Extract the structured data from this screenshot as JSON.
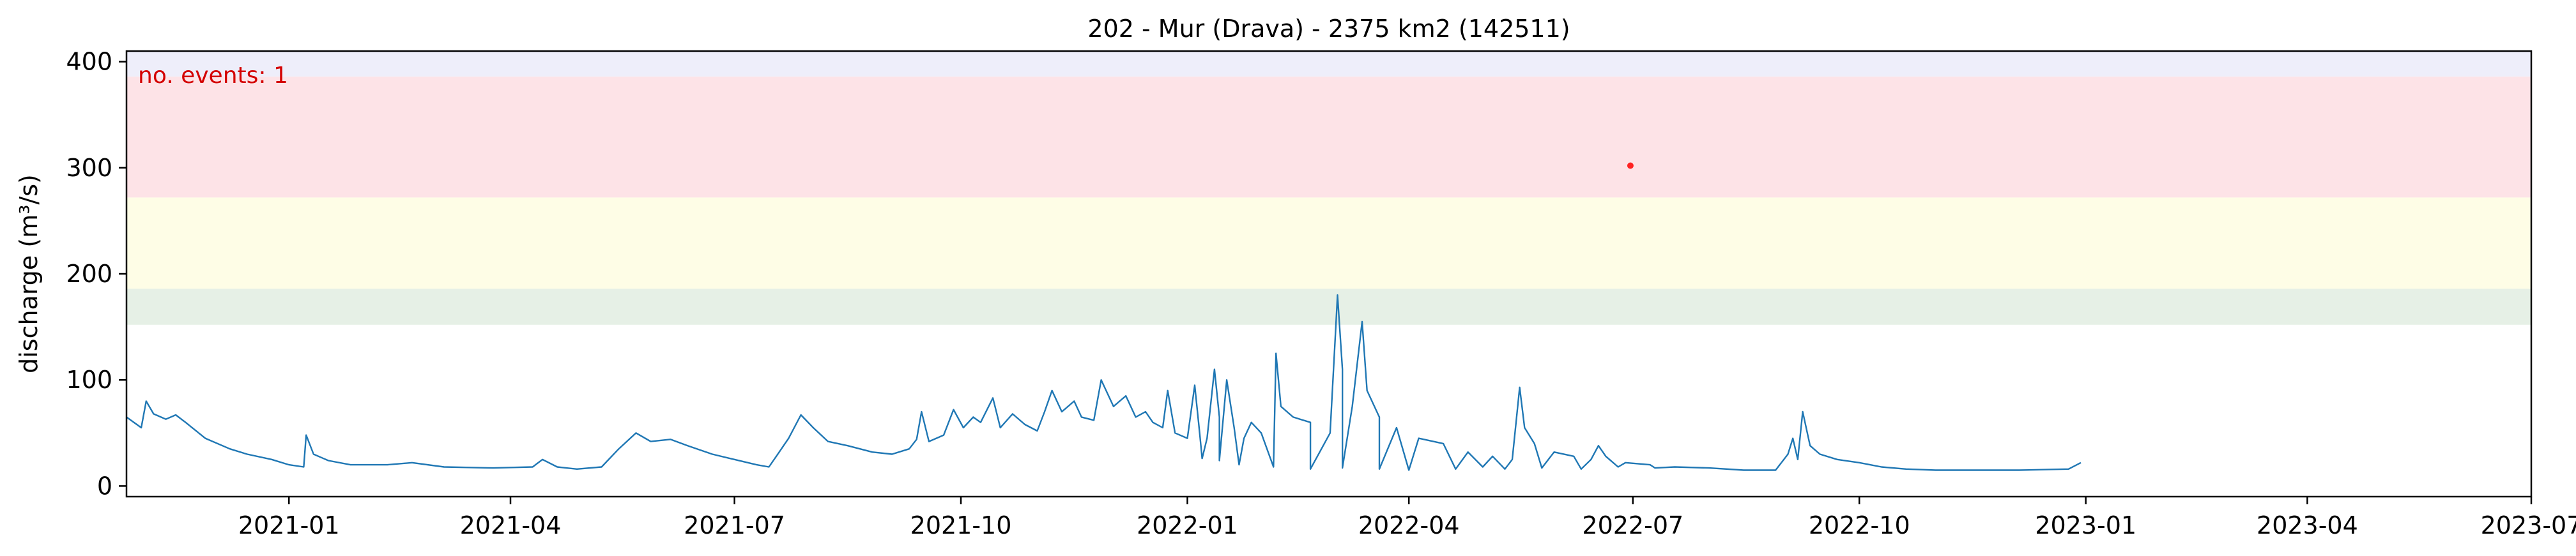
{
  "chart_data": {
    "type": "line",
    "title": "202 - Mur (Drava) - 2375 km2 (142511)",
    "xlabel": "",
    "ylabel": "discharge (m³/s)",
    "xlim": [
      "2020-10-27",
      "2023-07-01"
    ],
    "ylim": [
      -10,
      410
    ],
    "x_ticks": [
      "2021-01",
      "2021-04",
      "2021-07",
      "2021-10",
      "2022-01",
      "2022-04",
      "2022-07",
      "2022-10",
      "2023-01",
      "2023-04",
      "2023-07"
    ],
    "y_ticks": [
      0,
      100,
      200,
      300,
      400
    ],
    "grid": false,
    "bands": [
      {
        "from": 152,
        "to": 186,
        "color": "#e6f0e6"
      },
      {
        "from": 186,
        "to": 272,
        "color": "#fefde6"
      },
      {
        "from": 272,
        "to": 386,
        "color": "#fde3e7"
      },
      {
        "from": 386,
        "to": 410,
        "color": "#eeeefa"
      }
    ],
    "annotation": "no. events: 1",
    "series": [
      {
        "color": "#1f77b4",
        "points": [
          [
            "2020-10-27",
            65
          ],
          [
            "2020-11-02",
            55
          ],
          [
            "2020-11-04",
            80
          ],
          [
            "2020-11-07",
            68
          ],
          [
            "2020-11-12",
            63
          ],
          [
            "2020-11-16",
            67
          ],
          [
            "2020-11-20",
            60
          ],
          [
            "2020-11-28",
            45
          ],
          [
            "2020-12-08",
            35
          ],
          [
            "2020-12-15",
            30
          ],
          [
            "2020-12-25",
            25
          ],
          [
            "2021-01-01",
            20
          ],
          [
            "2021-01-07",
            18
          ],
          [
            "2021-01-08",
            48
          ],
          [
            "2021-01-11",
            30
          ],
          [
            "2021-01-17",
            24
          ],
          [
            "2021-01-26",
            20
          ],
          [
            "2021-02-10",
            20
          ],
          [
            "2021-02-20",
            22
          ],
          [
            "2021-03-05",
            18
          ],
          [
            "2021-03-25",
            17
          ],
          [
            "2021-04-10",
            18
          ],
          [
            "2021-04-14",
            25
          ],
          [
            "2021-04-20",
            18
          ],
          [
            "2021-04-28",
            16
          ],
          [
            "2021-05-08",
            18
          ],
          [
            "2021-05-15",
            35
          ],
          [
            "2021-05-22",
            50
          ],
          [
            "2021-05-28",
            42
          ],
          [
            "2021-06-05",
            44
          ],
          [
            "2021-06-12",
            38
          ],
          [
            "2021-06-22",
            30
          ],
          [
            "2021-07-01",
            25
          ],
          [
            "2021-07-10",
            20
          ],
          [
            "2021-07-15",
            18
          ],
          [
            "2021-07-18",
            28
          ],
          [
            "2021-07-23",
            45
          ],
          [
            "2021-07-28",
            67
          ],
          [
            "2021-08-02",
            55
          ],
          [
            "2021-08-08",
            42
          ],
          [
            "2021-08-16",
            38
          ],
          [
            "2021-08-26",
            32
          ],
          [
            "2021-09-03",
            30
          ],
          [
            "2021-09-10",
            35
          ],
          [
            "2021-09-13",
            44
          ],
          [
            "2021-09-15",
            70
          ],
          [
            "2021-09-18",
            42
          ],
          [
            "2021-09-24",
            48
          ],
          [
            "2021-09-28",
            72
          ],
          [
            "2021-10-02",
            55
          ],
          [
            "2021-10-06",
            65
          ],
          [
            "2021-10-09",
            60
          ],
          [
            "2021-10-14",
            83
          ],
          [
            "2021-10-17",
            55
          ],
          [
            "2021-10-22",
            68
          ],
          [
            "2021-10-27",
            58
          ],
          [
            "2021-11-01",
            52
          ],
          [
            "2021-11-04",
            70
          ],
          [
            "2021-11-07",
            90
          ],
          [
            "2021-11-11",
            70
          ],
          [
            "2021-11-16",
            80
          ],
          [
            "2021-11-19",
            65
          ],
          [
            "2021-11-24",
            62
          ],
          [
            "2021-11-27",
            100
          ],
          [
            "2021-12-02",
            75
          ],
          [
            "2021-12-07",
            85
          ],
          [
            "2021-12-11",
            65
          ],
          [
            "2021-12-15",
            70
          ],
          [
            "2021-12-18",
            60
          ],
          [
            "2021-12-22",
            55
          ],
          [
            "2021-12-24",
            90
          ],
          [
            "2021-12-27",
            50
          ],
          [
            "2022-01-01",
            45
          ],
          [
            "2022-01-04",
            95
          ],
          [
            "2022-01-06",
            50
          ],
          [
            "2022-01-09",
            45
          ],
          [
            "2022-01-12",
            110
          ],
          [
            "2022-01-14",
            65
          ],
          [
            "2022-01-17",
            100
          ],
          [
            "2022-01-20",
            55
          ],
          [
            "2022-01-24",
            45
          ],
          [
            "2022-01-27",
            60
          ],
          [
            "2022-01-31",
            50
          ],
          [
            "2022-02-06",
            125
          ],
          [
            "2022-02-08",
            75
          ],
          [
            "2022-02-13",
            65
          ],
          [
            "2022-02-20",
            60
          ],
          [
            "2022-02-28",
            50
          ],
          [
            "2022-03-03",
            180
          ],
          [
            "2022-03-05",
            110
          ],
          [
            "2022-03-09",
            75
          ],
          [
            "2022-03-13",
            155
          ],
          [
            "2022-03-15",
            90
          ],
          [
            "2022-03-20",
            65
          ],
          [
            "2022-03-27",
            55
          ],
          [
            "2022-04-05",
            45
          ],
          [
            "2022-04-15",
            40
          ],
          [
            "2022-04-25",
            32
          ],
          [
            "2022-05-05",
            28
          ],
          [
            "2022-05-13",
            25
          ],
          [
            "2022-05-16",
            93
          ],
          [
            "2022-05-18",
            55
          ],
          [
            "2022-05-22",
            40
          ],
          [
            "2022-05-30",
            32
          ],
          [
            "2022-06-07",
            28
          ],
          [
            "2022-06-14",
            25
          ],
          [
            "2022-06-17",
            38
          ],
          [
            "2022-06-20",
            28
          ],
          [
            "2022-06-28",
            22
          ],
          [
            "2022-07-08",
            20
          ],
          [
            "2022-07-18",
            18
          ],
          [
            "2022-08-01",
            17
          ],
          [
            "2022-08-15",
            15
          ],
          [
            "2022-08-28",
            15
          ],
          [
            "2022-09-02",
            30
          ],
          [
            "2022-09-04",
            45
          ],
          [
            "2022-09-06",
            25
          ],
          [
            "2022-09-08",
            70
          ],
          [
            "2022-09-11",
            38
          ],
          [
            "2022-09-15",
            30
          ],
          [
            "2022-09-22",
            25
          ],
          [
            "2022-10-01",
            22
          ],
          [
            "2022-10-10",
            18
          ],
          [
            "2022-10-20",
            16
          ],
          [
            "2022-11-01",
            15
          ],
          [
            "2022-11-20",
            15
          ],
          [
            "2022-12-05",
            15
          ],
          [
            "2022-12-25",
            16
          ],
          [
            "2022-12-30",
            22
          ],
          [
            "2022-01-07",
            26
          ],
          [
            "2022-01-14",
            24
          ],
          [
            "2022-01-22",
            20
          ],
          [
            "2022-02-05",
            18
          ],
          [
            "2022-02-20",
            16
          ],
          [
            "2022-03-05",
            17
          ],
          [
            "2022-03-20",
            16
          ],
          [
            "2022-04-01",
            15
          ],
          [
            "2022-04-20",
            16
          ],
          [
            "2022-05-01",
            18
          ],
          [
            "2022-05-10",
            16
          ],
          [
            "2022-05-25",
            17
          ],
          [
            "2022-06-10",
            16
          ],
          [
            "2022-06-25",
            18
          ],
          [
            "2022-07-10",
            17
          ]
        ]
      }
    ],
    "events": [
      {
        "x": "2022-06-30",
        "y": 302,
        "color": "#ff2222"
      }
    ]
  }
}
